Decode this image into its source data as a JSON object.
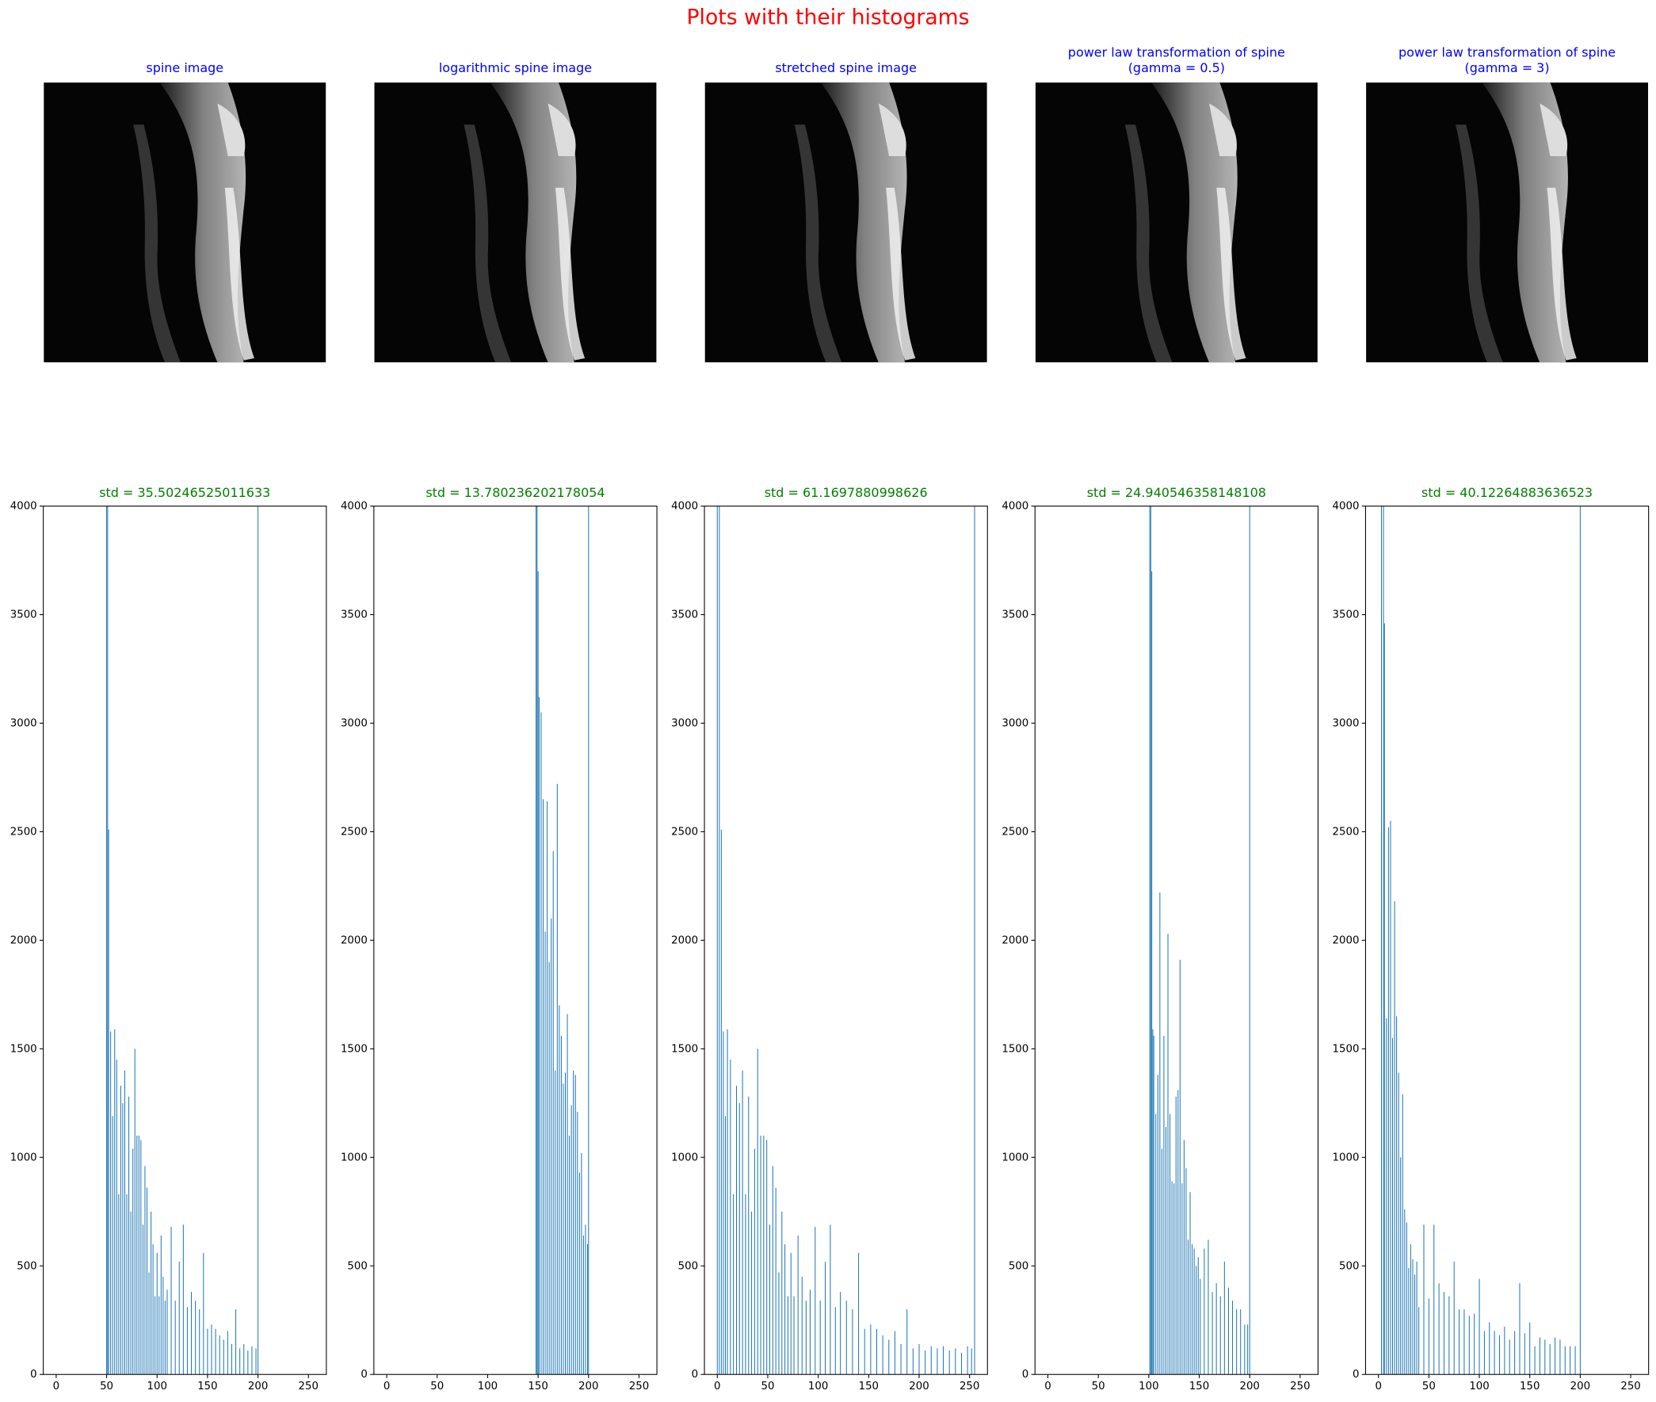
{
  "title": "Plots with their histograms",
  "images": [
    {
      "title": [
        "spine image"
      ]
    },
    {
      "title": [
        "logarithmic spine image"
      ]
    },
    {
      "title": [
        "stretched spine image"
      ]
    },
    {
      "title": [
        "power law transformation of spine",
        "(gamma = 0.5)"
      ]
    },
    {
      "title": [
        "power law transformation of spine",
        "(gamma = 3)"
      ]
    }
  ],
  "chart_data": [
    {
      "type": "bar",
      "title": "std = 35.50246525011633",
      "color": "#1f77b4",
      "x": [
        50,
        51,
        52,
        54,
        56,
        58,
        60,
        62,
        64,
        66,
        68,
        70,
        72,
        74,
        76,
        78,
        80,
        82,
        84,
        86,
        88,
        90,
        92,
        94,
        96,
        98,
        100,
        102,
        104,
        106,
        108,
        110,
        114,
        118,
        122,
        126,
        130,
        134,
        138,
        142,
        146,
        150,
        154,
        158,
        162,
        166,
        170,
        174,
        178,
        182,
        186,
        190,
        194,
        198,
        200
      ],
      "values": [
        4000,
        4000,
        2510,
        1580,
        1190,
        1590,
        1450,
        830,
        1330,
        1250,
        1400,
        830,
        1280,
        750,
        1040,
        1500,
        1100,
        1100,
        1080,
        690,
        960,
        860,
        470,
        750,
        600,
        360,
        560,
        360,
        640,
        450,
        340,
        390,
        680,
        340,
        520,
        690,
        310,
        380,
        340,
        300,
        560,
        210,
        230,
        210,
        180,
        160,
        200,
        140,
        300,
        120,
        140,
        110,
        130,
        120,
        4000
      ],
      "xlim": [
        -12.75,
        267.75
      ],
      "ylim": [
        0,
        4000
      ],
      "xticks": [
        0,
        50,
        100,
        150,
        200,
        250
      ],
      "yticks": [
        0,
        500,
        1000,
        1500,
        2000,
        2500,
        3000,
        3500,
        4000
      ]
    },
    {
      "type": "bar",
      "title": "std = 13.780236202178054",
      "color": "#1f77b4",
      "x": [
        148,
        149,
        150,
        151,
        153,
        155,
        157,
        159,
        161,
        163,
        165,
        167,
        169,
        171,
        173,
        175,
        177,
        179,
        181,
        183,
        185,
        187,
        189,
        191,
        193,
        195,
        197,
        199,
        200
      ],
      "values": [
        4000,
        4000,
        3700,
        3120,
        3050,
        2650,
        2040,
        2640,
        1900,
        2100,
        2410,
        1400,
        2720,
        1700,
        1560,
        1340,
        1390,
        1660,
        1100,
        1240,
        1400,
        1380,
        1210,
        930,
        1020,
        640,
        690,
        600,
        4000
      ],
      "xlim": [
        -12.75,
        267.75
      ],
      "ylim": [
        0,
        4000
      ],
      "xticks": [
        0,
        50,
        100,
        150,
        200,
        250
      ],
      "yticks": [
        0,
        500,
        1000,
        1500,
        2000,
        2500,
        3000,
        3500,
        4000
      ]
    },
    {
      "type": "bar",
      "title": "std = 61.1697880998626",
      "color": "#1f77b4",
      "x": [
        0,
        2,
        4,
        6,
        8,
        10,
        13,
        16,
        19,
        22,
        25,
        28,
        31,
        34,
        37,
        40,
        43,
        46,
        49,
        52,
        55,
        58,
        61,
        64,
        67,
        70,
        73,
        76,
        80,
        84,
        88,
        92,
        97,
        102,
        107,
        112,
        117,
        122,
        128,
        134,
        140,
        146,
        152,
        158,
        164,
        170,
        176,
        182,
        188,
        194,
        200,
        206,
        212,
        218,
        224,
        230,
        236,
        242,
        248,
        252,
        255
      ],
      "values": [
        4000,
        4000,
        2510,
        1580,
        1190,
        1590,
        1450,
        830,
        1330,
        1250,
        1400,
        830,
        1280,
        750,
        1040,
        1500,
        1100,
        1100,
        1080,
        690,
        960,
        860,
        470,
        750,
        600,
        360,
        560,
        360,
        640,
        450,
        340,
        390,
        680,
        340,
        520,
        690,
        310,
        380,
        340,
        300,
        560,
        210,
        230,
        210,
        180,
        160,
        200,
        140,
        300,
        120,
        140,
        110,
        130,
        120,
        130,
        110,
        120,
        100,
        130,
        120,
        4000
      ],
      "xlim": [
        -12.75,
        267.75
      ],
      "ylim": [
        0,
        4000
      ],
      "xticks": [
        0,
        50,
        100,
        150,
        200,
        250
      ],
      "yticks": [
        0,
        500,
        1000,
        1500,
        2000,
        2500,
        3000,
        3500,
        4000
      ]
    },
    {
      "type": "bar",
      "title": "std = 24.940546358148108",
      "color": "#1f77b4",
      "x": [
        101,
        102,
        103,
        104,
        105,
        107,
        109,
        111,
        113,
        115,
        117,
        119,
        121,
        123,
        125,
        127,
        129,
        131,
        133,
        135,
        137,
        139,
        141,
        143,
        145,
        147,
        149,
        151,
        155,
        159,
        163,
        167,
        171,
        175,
        179,
        183,
        187,
        191,
        195,
        198,
        200
      ],
      "values": [
        4000,
        4000,
        3700,
        1590,
        1560,
        1200,
        1380,
        2220,
        1040,
        1560,
        1140,
        2030,
        1200,
        890,
        880,
        1280,
        1310,
        1910,
        880,
        1080,
        950,
        620,
        840,
        600,
        580,
        500,
        540,
        440,
        580,
        620,
        380,
        420,
        360,
        520,
        400,
        340,
        300,
        300,
        230,
        230,
        4000
      ],
      "xlim": [
        -12.75,
        267.75
      ],
      "ylim": [
        0,
        4000
      ],
      "xticks": [
        0,
        50,
        100,
        150,
        200,
        250
      ],
      "yticks": [
        0,
        500,
        1000,
        1500,
        2000,
        2500,
        3000,
        3500,
        4000
      ]
    },
    {
      "type": "bar",
      "title": "std = 40.12264883636523",
      "color": "#1f77b4",
      "x": [
        3,
        5,
        6,
        8,
        10,
        12,
        14,
        16,
        18,
        20,
        22,
        24,
        26,
        28,
        30,
        32,
        34,
        36,
        38,
        40,
        45,
        50,
        55,
        60,
        65,
        70,
        75,
        80,
        85,
        90,
        95,
        100,
        105,
        110,
        115,
        120,
        125,
        130,
        135,
        140,
        145,
        150,
        155,
        160,
        165,
        170,
        175,
        180,
        185,
        190,
        195,
        200
      ],
      "values": [
        4000,
        4000,
        3460,
        1640,
        2520,
        2550,
        1550,
        2180,
        1650,
        1390,
        1000,
        1290,
        760,
        700,
        490,
        600,
        530,
        460,
        520,
        310,
        690,
        350,
        690,
        420,
        380,
        360,
        520,
        300,
        300,
        270,
        280,
        440,
        200,
        240,
        200,
        180,
        220,
        160,
        200,
        420,
        190,
        240,
        130,
        170,
        160,
        140,
        170,
        160,
        130,
        130,
        130,
        4000
      ],
      "xlim": [
        -12.75,
        267.75
      ],
      "ylim": [
        0,
        4000
      ],
      "xticks": [
        0,
        50,
        100,
        150,
        200,
        250
      ],
      "yticks": [
        0,
        500,
        1000,
        1500,
        2000,
        2500,
        3000,
        3500,
        4000
      ]
    }
  ]
}
